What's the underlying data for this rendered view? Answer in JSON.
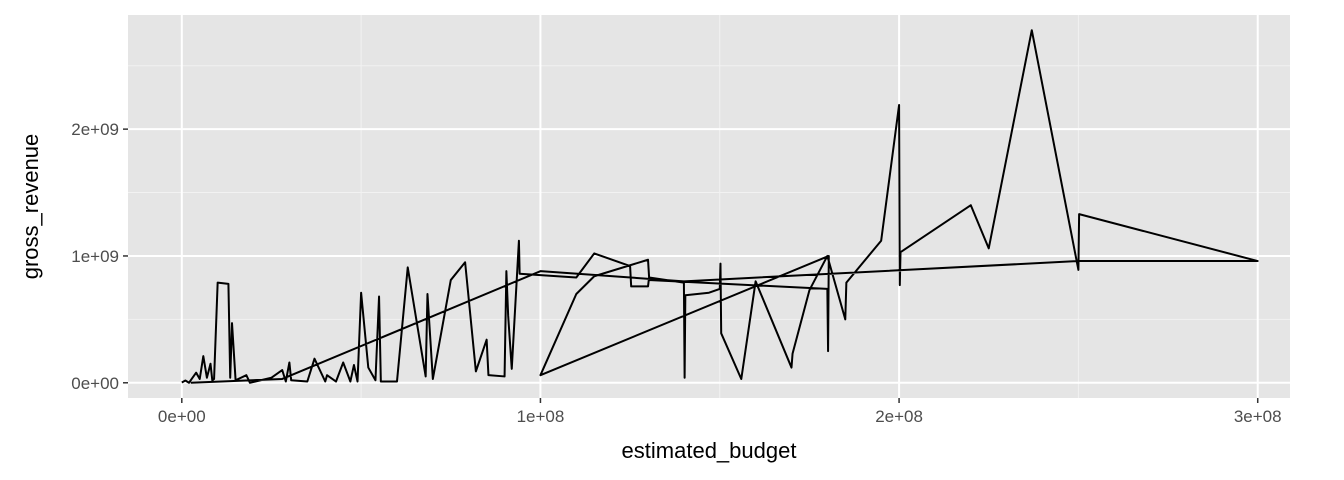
{
  "chart_data": {
    "type": "line",
    "xlabel": "estimated_budget",
    "ylabel": "gross_revenue",
    "xlim": [
      -15000000,
      309000000
    ],
    "ylim": [
      -120000000,
      2900000000
    ],
    "x_ticks": [
      {
        "value": 0,
        "label": "0e+00"
      },
      {
        "value": 100000000,
        "label": "1e+08"
      },
      {
        "value": 200000000,
        "label": "2e+08"
      },
      {
        "value": 300000000,
        "label": "3e+08"
      }
    ],
    "y_ticks": [
      {
        "value": 0,
        "label": "0e+00"
      },
      {
        "value": 1000000000,
        "label": "1e+09"
      },
      {
        "value": 2000000000,
        "label": "2e+09"
      }
    ],
    "grid": true,
    "colors": {
      "panel": "#e5e5e5",
      "grid_major": "#ffffff",
      "grid_minor": "#f2f2f2",
      "line": "#000000"
    },
    "series": [
      {
        "points": [
          [
            0,
            2000000
          ],
          [
            1000000,
            18000000
          ],
          [
            2000000,
            0
          ],
          [
            3000000,
            40000000
          ],
          [
            4000000,
            80000000
          ],
          [
            5000000,
            30000000
          ],
          [
            6000000,
            210000000
          ],
          [
            7000000,
            40000000
          ],
          [
            8000000,
            150000000
          ],
          [
            8500000,
            20000000
          ],
          [
            9000000,
            30000000
          ],
          [
            10000000,
            790000000
          ],
          [
            13000000,
            780000000
          ],
          [
            13500000,
            40000000
          ],
          [
            14000000,
            470000000
          ],
          [
            15000000,
            20000000
          ],
          [
            18000000,
            60000000
          ],
          [
            19000000,
            0
          ],
          [
            22000000,
            20000000
          ],
          [
            25000000,
            40000000
          ],
          [
            28000000,
            100000000
          ],
          [
            29000000,
            10000000
          ],
          [
            30000000,
            160000000
          ],
          [
            30500000,
            20000000
          ],
          [
            35000000,
            10000000
          ],
          [
            37000000,
            190000000
          ],
          [
            40000000,
            10000000
          ],
          [
            40500000,
            60000000
          ],
          [
            43000000,
            10000000
          ],
          [
            45000000,
            160000000
          ],
          [
            47000000,
            10000000
          ],
          [
            48000000,
            140000000
          ],
          [
            49000000,
            10000000
          ],
          [
            50000000,
            710000000
          ],
          [
            52000000,
            120000000
          ],
          [
            54000000,
            20000000
          ],
          [
            55000000,
            680000000
          ],
          [
            55500000,
            10000000
          ],
          [
            60000000,
            10000000
          ],
          [
            63000000,
            910000000
          ],
          [
            68000000,
            50000000
          ],
          [
            68500000,
            700000000
          ],
          [
            70000000,
            30000000
          ],
          [
            75000000,
            810000000
          ],
          [
            79000000,
            950000000
          ],
          [
            82000000,
            90000000
          ],
          [
            85000000,
            340000000
          ],
          [
            85500000,
            60000000
          ],
          [
            90000000,
            50000000
          ],
          [
            90500000,
            880000000
          ],
          [
            91000000,
            530000000
          ],
          [
            92000000,
            110000000
          ],
          [
            94000000,
            1120000000
          ],
          [
            94200000,
            860000000
          ],
          [
            110000000,
            830000000
          ],
          [
            115000000,
            1020000000
          ],
          [
            125000000,
            920000000
          ],
          [
            125300000,
            760000000
          ],
          [
            130000000,
            760000000
          ],
          [
            130200000,
            810000000
          ],
          [
            180000000,
            740000000
          ],
          [
            180200000,
            250000000
          ],
          [
            180400000,
            1000000000
          ],
          [
            100000000,
            60000000
          ],
          [
            110000000,
            700000000
          ],
          [
            115000000,
            840000000
          ],
          [
            130000000,
            970000000
          ],
          [
            130300000,
            830000000
          ],
          [
            140000000,
            790000000
          ],
          [
            140200000,
            40000000
          ],
          [
            140400000,
            690000000
          ],
          [
            147000000,
            710000000
          ],
          [
            150000000,
            740000000
          ],
          [
            150200000,
            940000000
          ],
          [
            150400000,
            390000000
          ],
          [
            156000000,
            30000000
          ],
          [
            160000000,
            800000000
          ],
          [
            170000000,
            120000000
          ],
          [
            170300000,
            230000000
          ],
          [
            175000000,
            730000000
          ],
          [
            180000000,
            1000000000
          ],
          [
            185000000,
            500000000
          ],
          [
            185300000,
            790000000
          ],
          [
            195000000,
            1120000000
          ],
          [
            200000000,
            2190000000
          ],
          [
            200200000,
            770000000
          ],
          [
            200400000,
            1030000000
          ],
          [
            220000000,
            1400000000
          ],
          [
            225000000,
            1060000000
          ],
          [
            237000000,
            2780000000
          ],
          [
            250000000,
            890000000
          ],
          [
            250200000,
            1330000000
          ],
          [
            300000000,
            960000000
          ],
          [
            250000000,
            960000000
          ],
          [
            140000000,
            800000000
          ],
          [
            100000000,
            880000000
          ],
          [
            28000000,
            30000000
          ],
          [
            2500000,
            0
          ]
        ]
      }
    ]
  }
}
